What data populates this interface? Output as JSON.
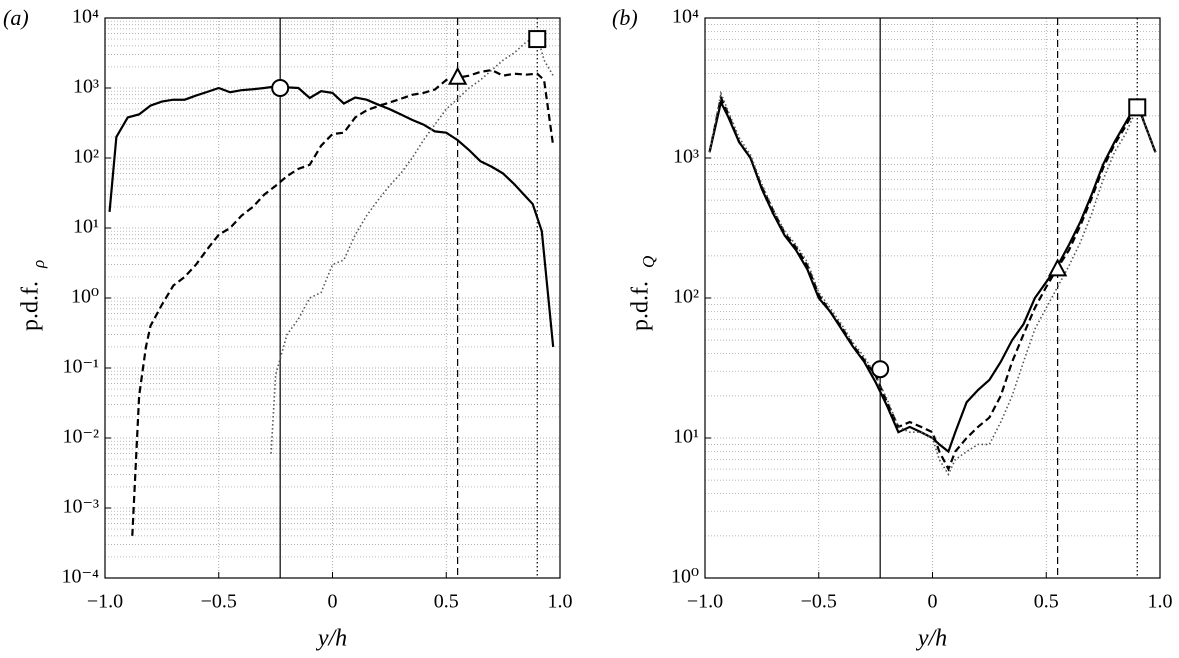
{
  "chart_data": [
    {
      "type": "line",
      "panel_label": "(a)",
      "xlabel": "y/h",
      "ylabel": "p.d.f.",
      "ylabel_subscript": "ρ",
      "yscale": "log",
      "grid": true,
      "minor_grid": true,
      "xlim": [
        -1,
        1
      ],
      "ylim": [
        0.0001,
        10000
      ],
      "xticks": [
        {
          "value": -1,
          "label": "−1.0"
        },
        {
          "value": -0.5,
          "label": "−0.5"
        },
        0,
        0.5,
        {
          "value": 1,
          "label": "1.0"
        }
      ],
      "yticks": [
        {
          "value": 0.0001,
          "label": "10⁻⁴"
        },
        {
          "value": 0.001,
          "label": "10⁻³"
        },
        {
          "value": 0.01,
          "label": "10⁻²"
        },
        {
          "value": 0.1,
          "label": "10⁻¹"
        },
        {
          "value": 1,
          "label": "10⁰"
        },
        {
          "value": 10,
          "label": "10¹"
        },
        {
          "value": 100,
          "label": "10²"
        },
        {
          "value": 1000,
          "label": "10³"
        },
        {
          "value": 10000,
          "label": "10⁴"
        }
      ],
      "series": [
        {
          "color": "#000000",
          "dash": "solid",
          "x": [
            -0.98,
            -0.95,
            -0.9,
            -0.85,
            -0.8,
            -0.75,
            -0.7,
            -0.65,
            -0.6,
            -0.55,
            -0.5,
            -0.45,
            -0.4,
            -0.35,
            -0.3,
            -0.25,
            -0.2,
            -0.15,
            -0.1,
            -0.05,
            0,
            0.05,
            0.1,
            0.15,
            0.2,
            0.25,
            0.3,
            0.35,
            0.4,
            0.45,
            0.5,
            0.55,
            0.6,
            0.65,
            0.7,
            0.75,
            0.8,
            0.85,
            0.88,
            0.92,
            0.97
          ],
          "values": [
            17,
            200,
            380,
            420,
            560,
            640,
            680,
            680,
            780,
            880,
            1000,
            870,
            930,
            960,
            1000,
            1050,
            1020,
            1000,
            720,
            900,
            850,
            600,
            730,
            680,
            580,
            500,
            420,
            350,
            300,
            240,
            230,
            180,
            130,
            90,
            75,
            60,
            42,
            28,
            22,
            9,
            0.2
          ]
        },
        {
          "color": "#000000",
          "dash": "dashed",
          "x": [
            -0.88,
            -0.85,
            -0.82,
            -0.8,
            -0.75,
            -0.7,
            -0.65,
            -0.6,
            -0.55,
            -0.5,
            -0.45,
            -0.4,
            -0.35,
            -0.3,
            -0.25,
            -0.2,
            -0.15,
            -0.1,
            -0.05,
            0,
            0.05,
            0.1,
            0.15,
            0.2,
            0.25,
            0.3,
            0.35,
            0.4,
            0.45,
            0.5,
            0.55,
            0.6,
            0.65,
            0.7,
            0.75,
            0.8,
            0.85,
            0.9,
            0.93,
            0.97
          ],
          "values": [
            0.0004,
            0.04,
            0.2,
            0.4,
            0.8,
            1.5,
            2,
            3,
            5,
            8,
            10,
            15,
            20,
            30,
            40,
            55,
            70,
            80,
            150,
            220,
            230,
            380,
            480,
            550,
            620,
            700,
            800,
            850,
            950,
            1300,
            1400,
            1500,
            1700,
            1800,
            1500,
            1600,
            1550,
            1600,
            1300,
            150
          ]
        },
        {
          "color": "#555555",
          "dash": "dotted",
          "x": [
            -0.27,
            -0.25,
            -0.2,
            -0.15,
            -0.1,
            -0.05,
            0,
            0.05,
            0.1,
            0.15,
            0.2,
            0.25,
            0.3,
            0.35,
            0.4,
            0.45,
            0.5,
            0.55,
            0.6,
            0.65,
            0.7,
            0.75,
            0.8,
            0.85,
            0.9,
            0.93,
            0.97
          ],
          "values": [
            0.006,
            0.08,
            0.3,
            0.5,
            1,
            1.2,
            3,
            3.5,
            8,
            15,
            25,
            40,
            60,
            100,
            180,
            300,
            500,
            700,
            1000,
            1300,
            1800,
            2500,
            3200,
            4500,
            5500,
            2500,
            1500
          ]
        }
      ],
      "vlines": [
        {
          "x": -0.23,
          "dash": "solid"
        },
        {
          "x": 0.55,
          "dash": "dashed"
        },
        {
          "x": 0.9,
          "dash": "dotted"
        }
      ],
      "markers": [
        {
          "x": -0.23,
          "y": 1000,
          "shape": "circle"
        },
        {
          "x": 0.55,
          "y": 1400,
          "shape": "triangle"
        },
        {
          "x": 0.9,
          "y": 5000,
          "shape": "square"
        }
      ]
    },
    {
      "type": "line",
      "panel_label": "(b)",
      "xlabel": "y/h",
      "ylabel": "p.d.f.",
      "ylabel_subscript": "Q",
      "yscale": "log",
      "grid": true,
      "minor_grid": true,
      "xlim": [
        -1,
        1
      ],
      "ylim": [
        1,
        10000
      ],
      "xticks": [
        {
          "value": -1,
          "label": "−1.0"
        },
        {
          "value": -0.5,
          "label": "−0.5"
        },
        0,
        0.5,
        {
          "value": 1,
          "label": "1.0"
        }
      ],
      "yticks": [
        {
          "value": 1,
          "label": "10⁰"
        },
        {
          "value": 10,
          "label": "10¹"
        },
        {
          "value": 100,
          "label": "10²"
        },
        {
          "value": 1000,
          "label": "10³"
        },
        {
          "value": 10000,
          "label": "10⁴"
        }
      ],
      "series": [
        {
          "color": "#000000",
          "dash": "solid",
          "x": [
            -0.98,
            -0.93,
            -0.9,
            -0.85,
            -0.8,
            -0.75,
            -0.7,
            -0.65,
            -0.6,
            -0.55,
            -0.5,
            -0.45,
            -0.4,
            -0.35,
            -0.3,
            -0.25,
            -0.2,
            -0.15,
            -0.1,
            -0.05,
            0,
            0.03,
            0.07,
            0.1,
            0.15,
            0.2,
            0.25,
            0.3,
            0.35,
            0.4,
            0.45,
            0.5,
            0.55,
            0.6,
            0.65,
            0.7,
            0.75,
            0.8,
            0.85,
            0.9,
            0.93,
            0.98
          ],
          "values": [
            1100,
            2500,
            2000,
            1300,
            1000,
            600,
            400,
            280,
            220,
            160,
            100,
            80,
            60,
            45,
            35,
            25,
            17,
            11,
            12,
            11,
            10,
            9,
            8,
            11,
            18,
            22,
            26,
            35,
            50,
            65,
            100,
            130,
            170,
            240,
            350,
            550,
            900,
            1300,
            1800,
            2500,
            1800,
            1100
          ]
        },
        {
          "color": "#000000",
          "dash": "dashed",
          "x": [
            -0.98,
            -0.93,
            -0.9,
            -0.85,
            -0.8,
            -0.75,
            -0.7,
            -0.65,
            -0.6,
            -0.55,
            -0.5,
            -0.45,
            -0.4,
            -0.35,
            -0.3,
            -0.25,
            -0.2,
            -0.15,
            -0.1,
            -0.05,
            0,
            0.03,
            0.07,
            0.1,
            0.15,
            0.2,
            0.25,
            0.3,
            0.35,
            0.4,
            0.45,
            0.5,
            0.55,
            0.6,
            0.65,
            0.7,
            0.75,
            0.8,
            0.85,
            0.9,
            0.93,
            0.98
          ],
          "values": [
            1100,
            2700,
            2100,
            1300,
            1000,
            620,
            420,
            290,
            230,
            170,
            105,
            80,
            62,
            46,
            36,
            28,
            18,
            12,
            13,
            12,
            11,
            8,
            6,
            8,
            10,
            12,
            14,
            20,
            35,
            55,
            85,
            120,
            165,
            220,
            330,
            520,
            850,
            1250,
            1700,
            2400,
            1800,
            1100
          ]
        },
        {
          "color": "#555555",
          "dash": "dotted",
          "x": [
            -0.98,
            -0.93,
            -0.9,
            -0.85,
            -0.8,
            -0.75,
            -0.7,
            -0.65,
            -0.6,
            -0.55,
            -0.5,
            -0.45,
            -0.4,
            -0.35,
            -0.3,
            -0.25,
            -0.2,
            -0.15,
            -0.1,
            -0.05,
            0,
            0.03,
            0.07,
            0.1,
            0.15,
            0.2,
            0.25,
            0.3,
            0.35,
            0.4,
            0.45,
            0.5,
            0.55,
            0.6,
            0.65,
            0.7,
            0.75,
            0.8,
            0.85,
            0.9,
            0.93,
            0.98
          ],
          "values": [
            1100,
            2900,
            2200,
            1400,
            1050,
            650,
            430,
            300,
            240,
            180,
            110,
            85,
            65,
            48,
            38,
            28,
            19,
            12,
            11,
            11,
            10,
            7,
            5.5,
            7,
            8,
            9,
            9,
            13,
            20,
            35,
            60,
            85,
            120,
            170,
            250,
            400,
            700,
            1100,
            1500,
            2300,
            1800,
            1100
          ]
        }
      ],
      "vlines": [
        {
          "x": -0.23,
          "dash": "solid"
        },
        {
          "x": 0.55,
          "dash": "dashed"
        },
        {
          "x": 0.9,
          "dash": "dotted"
        }
      ],
      "markers": [
        {
          "x": -0.23,
          "y": 31,
          "shape": "circle"
        },
        {
          "x": 0.55,
          "y": 160,
          "shape": "triangle"
        },
        {
          "x": 0.9,
          "y": 2300,
          "shape": "square"
        }
      ]
    }
  ]
}
